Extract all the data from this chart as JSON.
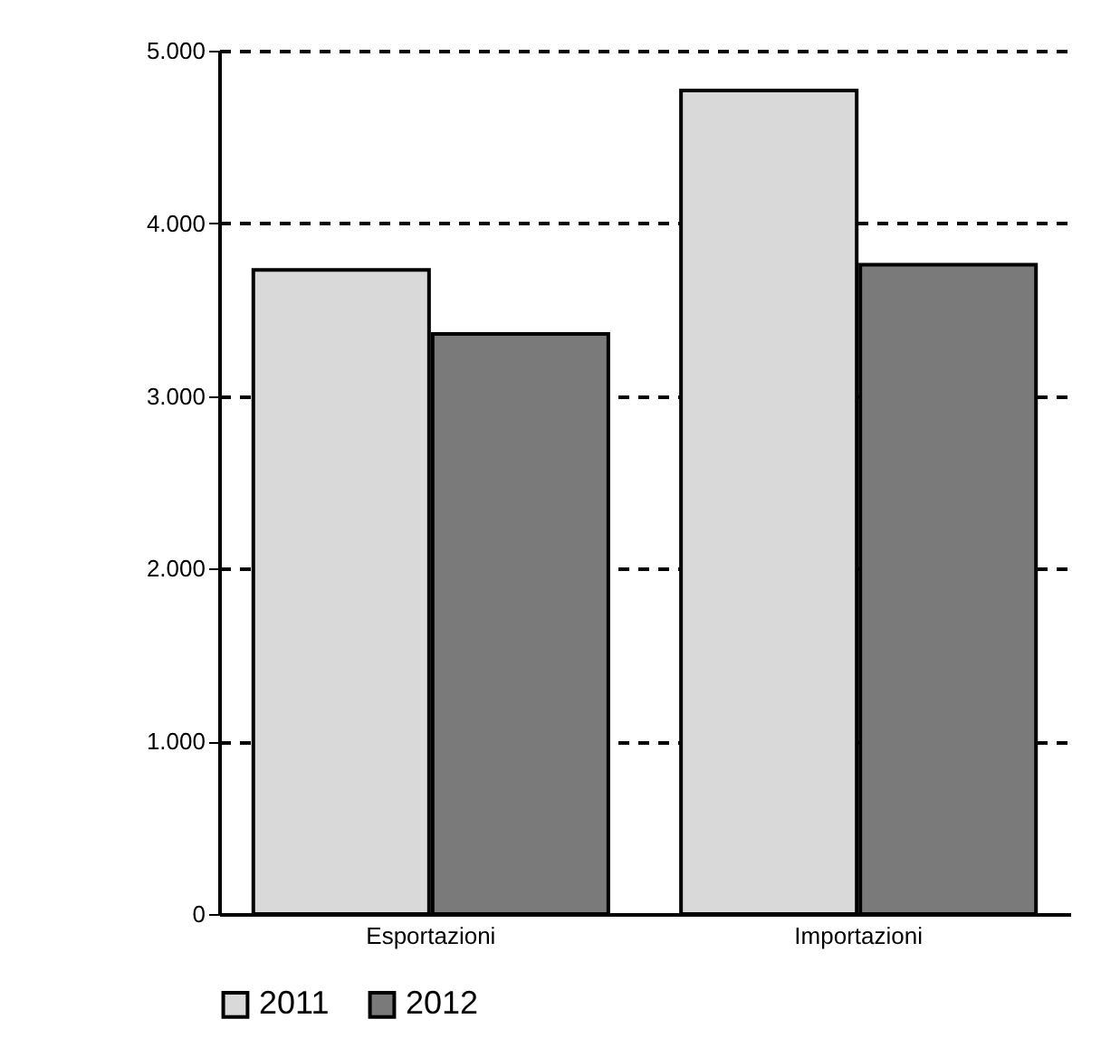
{
  "chart_data": {
    "type": "bar",
    "categories": [
      "Esportazioni",
      "Importazioni"
    ],
    "series": [
      {
        "name": "2011",
        "color": "#d9d9d9",
        "values": [
          3730,
          4770
        ]
      },
      {
        "name": "2012",
        "color": "#7a7a7a",
        "values": [
          3360,
          3760
        ]
      }
    ],
    "ylim": [
      0,
      5000
    ],
    "yticks": [
      0,
      {
        "value": 1000,
        "label": "1.000"
      },
      {
        "value": 2000,
        "label": "2.000"
      },
      {
        "value": 3000,
        "label": "3.000"
      },
      {
        "value": 4000,
        "label": "4.000"
      },
      {
        "value": 5000,
        "label": "5.000"
      }
    ],
    "grid": "y",
    "legend": "bottom"
  }
}
